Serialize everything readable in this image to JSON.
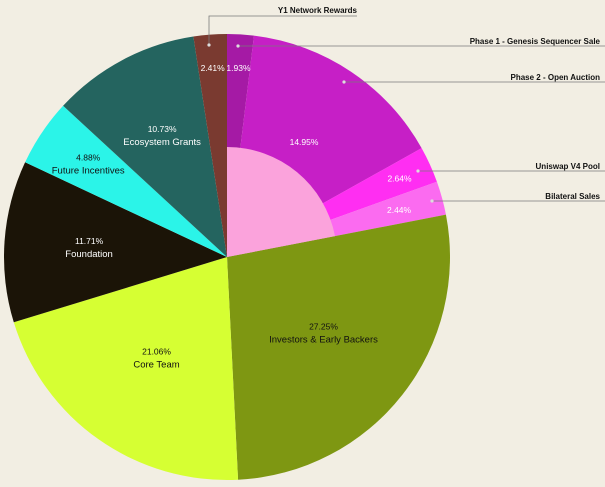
{
  "chart_data": {
    "type": "pie",
    "title": "",
    "slices": [
      {
        "name": "Phase 1 - Genesis Sequencer Sale",
        "value": 1.93,
        "label": "1.93%",
        "color": "#A51AA5",
        "text_color": "#FFFFFF"
      },
      {
        "name": "Phase 2 - Open Auction",
        "value": 14.95,
        "label": "14.95%",
        "color": "#C61FC6",
        "text_color": "#FFFFFF"
      },
      {
        "name": "Uniswap V4 Pool",
        "value": 2.64,
        "label": "2.64%",
        "color": "#FF2EF2",
        "text_color": "#FFFFFF"
      },
      {
        "name": "Bilateral Sales",
        "value": 2.44,
        "label": "2.44%",
        "color": "#FB6BF0",
        "text_color": "#FFFFFF"
      },
      {
        "name": "Investors & Early Backers",
        "value": 27.25,
        "label": "27.25%",
        "color": "#7E9712",
        "text_color": "#111111"
      },
      {
        "name": "Core Team",
        "value": 21.06,
        "label": "21.06%",
        "color": "#D6FF33",
        "text_color": "#111111"
      },
      {
        "name": "Foundation",
        "value": 11.71,
        "label": "11.71%",
        "color": "#1B1407",
        "text_color": "#FFFFFF"
      },
      {
        "name": "Future Incentives",
        "value": 4.88,
        "label": "4.88%",
        "color": "#2BF4E8",
        "text_color": "#111111"
      },
      {
        "name": "Ecosystem Grants",
        "value": 10.73,
        "label": "10.73%",
        "color": "#24645F",
        "text_color": "#FFFFFF"
      },
      {
        "name": "Y1 Network Rewards",
        "value": 2.41,
        "label": "2.41%",
        "color": "#7A3A30",
        "text_color": "#FFFFFF"
      }
    ],
    "inner_highlight_color": "#FBA3DC",
    "inner_highlight_group": [
      "Phase 1 - Genesis Sequencer Sale",
      "Phase 2 - Open Auction",
      "Uniswap V4 Pool",
      "Bilateral Sales"
    ],
    "leader_line_color": "#7A7A7A",
    "legend": "leader-lines-right",
    "background": "#F2EEE3"
  }
}
